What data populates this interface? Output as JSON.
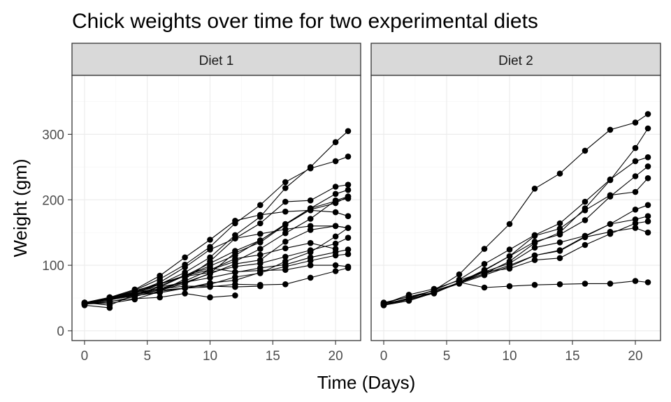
{
  "chart_data": {
    "type": "line",
    "title": "Chick weights over time for two experimental diets",
    "xlabel": "Time (Days)",
    "ylabel": "Weight (gm)",
    "xlim": [
      -1,
      22
    ],
    "ylim": [
      -15,
      390
    ],
    "x_ticks": [
      "0",
      "5",
      "10",
      "15",
      "20"
    ],
    "y_ticks": [
      "0",
      "100",
      "200",
      "300"
    ],
    "grid": true,
    "facets": [
      {
        "label": "Diet 1",
        "series": [
          {
            "x": [
              0,
              2,
              4,
              6,
              8,
              10,
              12,
              14,
              16,
              18,
              20,
              21
            ],
            "y": [
              42,
              51,
              59,
              64,
              76,
              93,
              106,
              125,
              149,
              171,
              199,
              205
            ]
          },
          {
            "x": [
              0,
              2,
              4,
              6,
              8,
              10,
              12,
              14,
              16,
              18,
              20,
              21
            ],
            "y": [
              40,
              49,
              58,
              72,
              84,
              103,
              122,
              138,
              162,
              187,
              209,
              215
            ]
          },
          {
            "x": [
              0,
              2,
              4,
              6,
              8,
              10,
              12,
              14,
              16,
              18,
              20,
              21
            ],
            "y": [
              43,
              39,
              55,
              67,
              84,
              99,
              115,
              138,
              163,
              187,
              198,
              202
            ]
          },
          {
            "x": [
              0,
              2,
              4,
              6,
              8,
              10,
              12,
              14,
              16,
              18,
              20,
              21
            ],
            "y": [
              42,
              49,
              56,
              67,
              74,
              87,
              102,
              108,
              136,
              154,
              160,
              157
            ]
          },
          {
            "x": [
              0,
              2,
              4,
              6,
              8,
              10,
              12,
              14,
              16,
              18,
              20,
              21
            ],
            "y": [
              41,
              42,
              48,
              60,
              79,
              106,
              141,
              164,
              197,
              199,
              220,
              223
            ]
          },
          {
            "x": [
              0,
              2,
              4,
              6,
              8,
              10,
              12,
              14,
              16,
              18,
              20,
              21
            ],
            "y": [
              41,
              49,
              59,
              74,
              97,
              124,
              141,
              148,
              155,
              160,
              160,
              157
            ]
          },
          {
            "x": [
              0,
              2,
              4,
              6,
              8,
              10,
              12,
              14,
              16,
              18,
              20,
              21
            ],
            "y": [
              41,
              49,
              57,
              71,
              89,
              112,
              146,
              174,
              218,
              250,
              288,
              305
            ]
          },
          {
            "x": [
              0,
              2,
              4,
              6,
              8,
              10,
              12,
              14,
              16,
              18,
              20
            ],
            "y": [
              42,
              50,
              61,
              71,
              84,
              93,
              110,
              116,
              126,
              134,
              125
            ]
          },
          {
            "x": [
              0,
              2,
              4,
              6,
              8,
              10,
              12,
              14,
              16,
              18,
              20,
              21
            ],
            "y": [
              42,
              51,
              59,
              68,
              85,
              96,
              90,
              92,
              93,
              100,
              100,
              98
            ]
          },
          {
            "x": [
              0,
              2,
              4,
              6,
              8,
              10,
              12,
              14,
              16,
              18,
              20,
              21
            ],
            "y": [
              41,
              44,
              52,
              63,
              74,
              81,
              89,
              96,
              101,
              112,
              120,
              124
            ]
          },
          {
            "x": [
              0,
              2,
              4,
              6,
              8,
              10,
              12,
              14,
              16,
              18,
              20,
              21
            ],
            "y": [
              43,
              51,
              63,
              84,
              112,
              139,
              168,
              177,
              182,
              184,
              181,
              175
            ]
          },
          {
            "x": [
              0,
              2,
              4,
              6,
              8,
              10,
              12,
              14,
              16,
              18,
              20,
              21
            ],
            "y": [
              41,
              49,
              56,
              62,
              72,
              88,
              119,
              135,
              162,
              185,
              195,
              205
            ]
          },
          {
            "x": [
              0,
              2,
              4,
              6,
              8,
              10,
              12,
              14,
              16,
              18,
              20,
              21
            ],
            "y": [
              41,
              48,
              53,
              60,
              65,
              67,
              71,
              70,
              71,
              81,
              91,
              96
            ]
          },
          {
            "x": [
              0,
              2,
              4,
              6,
              8,
              10,
              12,
              14,
              16,
              18,
              20,
              21
            ],
            "y": [
              41,
              49,
              62,
              79,
              101,
              128,
              164,
              192,
              227,
              248,
              259,
              266
            ]
          },
          {
            "x": [
              0,
              2,
              4,
              6,
              8,
              10,
              12,
              14
            ],
            "y": [
              41,
              49,
              56,
              64,
              68,
              68,
              67,
              68
            ]
          },
          {
            "x": [
              0,
              2,
              4,
              6,
              8,
              10,
              12
            ],
            "y": [
              41,
              45,
              49,
              51,
              57,
              51,
              54
            ]
          },
          {
            "x": [
              0,
              2,
              4,
              6,
              8,
              10,
              12,
              14,
              16,
              18,
              20,
              21
            ],
            "y": [
              42,
              51,
              61,
              72,
              83,
              89,
              98,
              103,
              113,
              123,
              133,
              142
            ]
          },
          {
            "x": [
              0,
              2
            ],
            "y": [
              39,
              35
            ]
          },
          {
            "x": [
              0,
              2,
              4,
              6,
              8,
              10,
              12,
              14,
              16,
              18,
              20,
              21
            ],
            "y": [
              43,
              48,
              55,
              62,
              65,
              71,
              82,
              88,
              106,
              120,
              144,
              157
            ]
          },
          {
            "x": [
              0,
              2,
              4,
              6,
              8,
              10,
              12,
              14,
              16,
              18,
              20,
              21
            ],
            "y": [
              41,
              47,
              54,
              58,
              65,
              73,
              77,
              89,
              98,
              107,
              115,
              117
            ]
          }
        ]
      },
      {
        "label": "Diet 2",
        "series": [
          {
            "x": [
              0,
              2,
              4,
              6,
              8,
              10,
              12,
              14,
              16,
              18,
              20,
              21
            ],
            "y": [
              40,
              50,
              62,
              86,
              125,
              163,
              217,
              240,
              275,
              307,
              318,
              331
            ]
          },
          {
            "x": [
              0,
              2,
              4,
              6,
              8,
              10,
              12,
              14,
              16,
              18,
              20,
              21
            ],
            "y": [
              41,
              55,
              64,
              77,
              90,
              95,
              108,
              111,
              131,
              148,
              164,
              167
            ]
          },
          {
            "x": [
              0,
              2,
              4,
              6,
              8,
              10,
              12,
              14,
              16,
              18,
              20,
              21
            ],
            "y": [
              43,
              52,
              61,
              73,
              90,
              103,
              127,
              135,
              145,
              163,
              170,
              175
            ]
          },
          {
            "x": [
              0,
              2,
              4,
              6,
              8,
              10,
              12,
              14,
              16,
              18,
              20,
              21
            ],
            "y": [
              42,
              52,
              58,
              74,
              66,
              68,
              70,
              71,
              72,
              72,
              76,
              74
            ]
          },
          {
            "x": [
              0,
              2,
              4,
              6,
              8,
              10,
              12,
              14,
              16,
              18,
              20,
              21
            ],
            "y": [
              40,
              49,
              62,
              78,
              102,
              124,
              146,
              164,
              197,
              231,
              259,
              265
            ]
          },
          {
            "x": [
              0,
              2,
              4,
              6,
              8,
              10,
              12,
              14,
              16,
              18,
              20,
              21
            ],
            "y": [
              42,
              48,
              57,
              74,
              93,
              114,
              136,
              147,
              169,
              205,
              236,
              251
            ]
          },
          {
            "x": [
              0,
              2,
              4,
              6,
              8,
              10,
              12,
              14,
              16,
              18,
              20,
              21
            ],
            "y": [
              39,
              46,
              58,
              73,
              87,
              100,
              115,
              123,
              144,
              163,
              185,
              192
            ]
          },
          {
            "x": [
              0,
              2,
              4,
              6,
              8,
              10,
              12,
              14,
              16,
              18,
              20,
              21
            ],
            "y": [
              39,
              46,
              58,
              73,
              92,
              114,
              145,
              156,
              184,
              207,
              212,
              233
            ]
          },
          {
            "x": [
              0,
              2,
              4,
              6,
              8,
              10,
              12,
              14,
              16,
              18,
              20,
              21
            ],
            "y": [
              39,
              48,
              59,
              74,
              87,
              106,
              134,
              150,
              187,
              230,
              279,
              309
            ]
          },
          {
            "x": [
              0,
              2,
              4,
              6,
              8,
              10,
              12,
              14,
              16,
              18,
              20,
              21
            ],
            "y": [
              42,
              48,
              59,
              72,
              85,
              98,
              115,
              122,
              143,
              151,
              157,
              150
            ]
          }
        ]
      }
    ]
  }
}
